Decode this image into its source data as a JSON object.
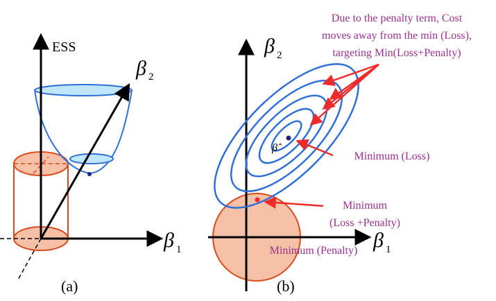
{
  "panel_a": {
    "caption": "(a)",
    "y_axis_label": "ESS",
    "beta2_symbol": "β",
    "beta2_sub": "2",
    "beta1_symbol": "β",
    "beta1_sub": "1"
  },
  "panel_b": {
    "caption": "(b)",
    "beta2_symbol": "β",
    "beta2_sub": "2",
    "beta1_symbol": "β",
    "beta1_sub": "1",
    "beta_hat": "β̂",
    "notes": {
      "penalty_line1": "Due to the penalty term, Cost",
      "penalty_line2": "moves away from the min (Loss),",
      "penalty_line3": "targeting Min(Loss+Penalty)",
      "min_loss": "Minimum (Loss)",
      "min_loss_penalty_line1": "Minimum",
      "min_loss_penalty_line2": "(Loss +Penalty)",
      "min_penalty": "Minimum (Penalty)"
    }
  },
  "colors": {
    "blue": "#2f6fd6",
    "light_blue": "#bfe6fb",
    "orange": "#d94a1e",
    "light_orange": "#f6c0a6",
    "red": "#ee2b2b",
    "purple": "#9b2f8f",
    "navy": "#1a237e"
  }
}
